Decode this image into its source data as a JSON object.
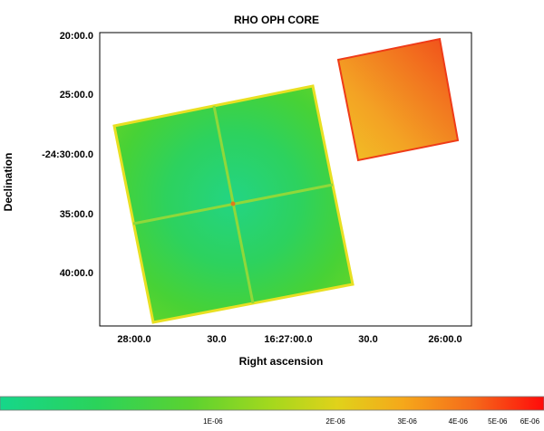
{
  "chart_data": {
    "type": "heatmap",
    "title": "RHO OPH CORE",
    "xlabel": "Right ascension",
    "ylabel": "Declination",
    "x_ticks": [
      "28:00.0",
      "30.0",
      "16:27:00.0",
      "30.0",
      "26:00.0"
    ],
    "y_ticks": [
      "20:00.0",
      "25:00.0",
      "-24:30:00.0",
      "35:00.0",
      "40:00.0"
    ],
    "colorbar": {
      "scale": "log",
      "range": [
        3e-07,
        6.5e-06
      ],
      "ticks": [
        "1E-06",
        "2E-06",
        "3E-06",
        "4E-06",
        "5E-06",
        "6E-06"
      ],
      "tick_values": [
        1e-06,
        2e-06,
        3e-06,
        4e-06,
        5e-06,
        6e-06
      ],
      "colormap": [
        "#16d68a",
        "#2bd35a",
        "#5bd230",
        "#a5d81d",
        "#e0d21a",
        "#f5a81a",
        "#f56a1a",
        "#ff0a0a"
      ]
    },
    "regions": [
      {
        "name": "large-square",
        "level": "low (~4E-07 to 8E-07)"
      },
      {
        "name": "small-square",
        "level": "high (~2E-06 to 5E-06)"
      }
    ]
  }
}
